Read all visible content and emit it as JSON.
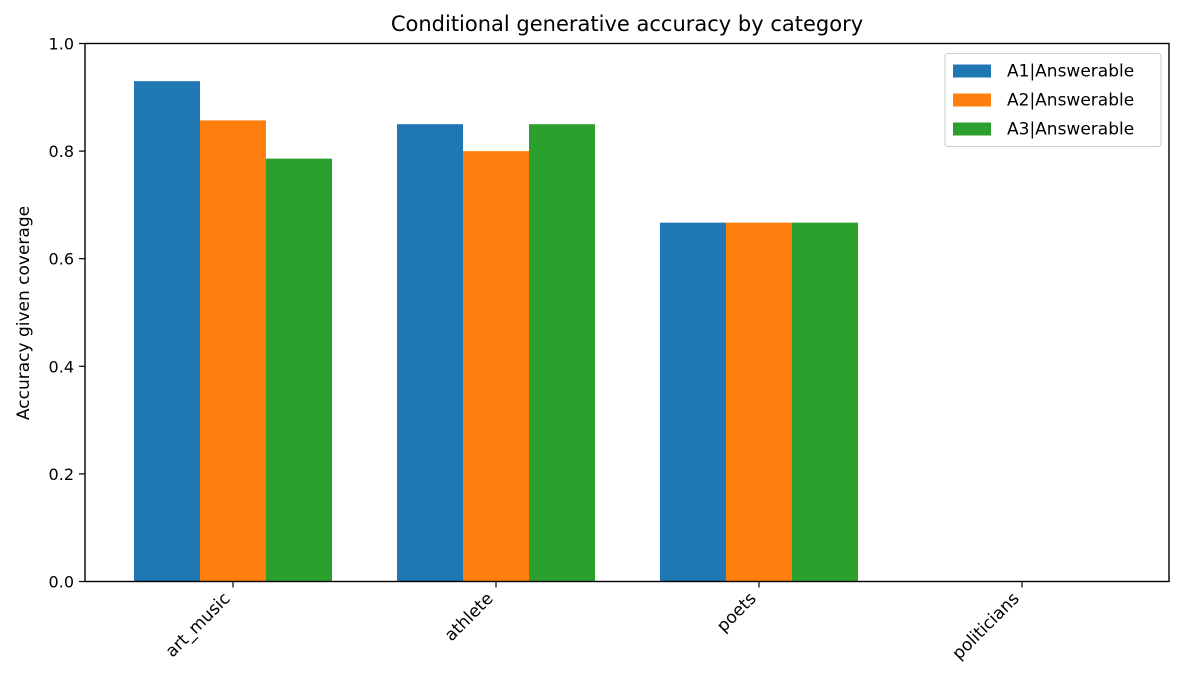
{
  "chart_data": {
    "type": "bar",
    "title": "Conditional generative accuracy by category",
    "xlabel": "",
    "ylabel": "Accuracy given coverage",
    "categories": [
      "art_music",
      "athlete",
      "poets",
      "politicians"
    ],
    "series": [
      {
        "name": "A1|Answerable",
        "color": "#1f77b4",
        "values": [
          0.93,
          0.85,
          0.667,
          0
        ]
      },
      {
        "name": "A2|Answerable",
        "color": "#ff7f0e",
        "values": [
          0.857,
          0.8,
          0.667,
          0
        ]
      },
      {
        "name": "A3|Answerable",
        "color": "#2ca02c",
        "values": [
          0.786,
          0.85,
          0.667,
          0
        ]
      }
    ],
    "ylim": [
      0,
      1
    ],
    "yticks": [
      "0.0",
      "0.2",
      "0.4",
      "0.6",
      "0.8",
      "1.0"
    ],
    "grid": false,
    "legend_position": "top-right"
  }
}
